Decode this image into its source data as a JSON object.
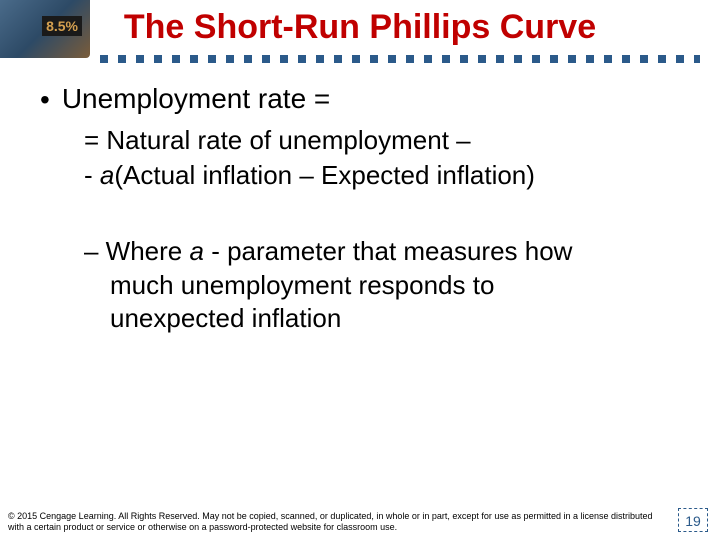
{
  "title": {
    "text": "The Short-Run Phillips Curve",
    "color": "#c00000",
    "fontsize": 34
  },
  "dotted_line_color": "#2b5a8a",
  "bullet": {
    "main": "Unemployment rate =",
    "fontsize": 28,
    "color": "#000000",
    "sub1": "= Natural rate of unemployment –",
    "sub2_prefix": "- ",
    "sub2_italic": "a",
    "sub2_rest": "(Actual inflation – Expected inflation)",
    "sub_fontsize": 26
  },
  "explanation": {
    "line1_prefix": "– Where ",
    "line1_italic": "a",
    "line1_rest": " - parameter that measures how",
    "line2": "much unemployment responds to",
    "line3": "unexpected inflation",
    "fontsize": 26,
    "color": "#000000"
  },
  "footer": {
    "text": "© 2015 Cengage Learning. All Rights Reserved. May not be copied, scanned, or duplicated, in whole or in part, except for use as permitted in a license distributed with a certain product or service or otherwise on a password-protected website for classroom use.",
    "fontsize": 9,
    "color": "#000000"
  },
  "page_number": {
    "value": "19",
    "fontsize": 14,
    "color": "#2b5a8a"
  }
}
